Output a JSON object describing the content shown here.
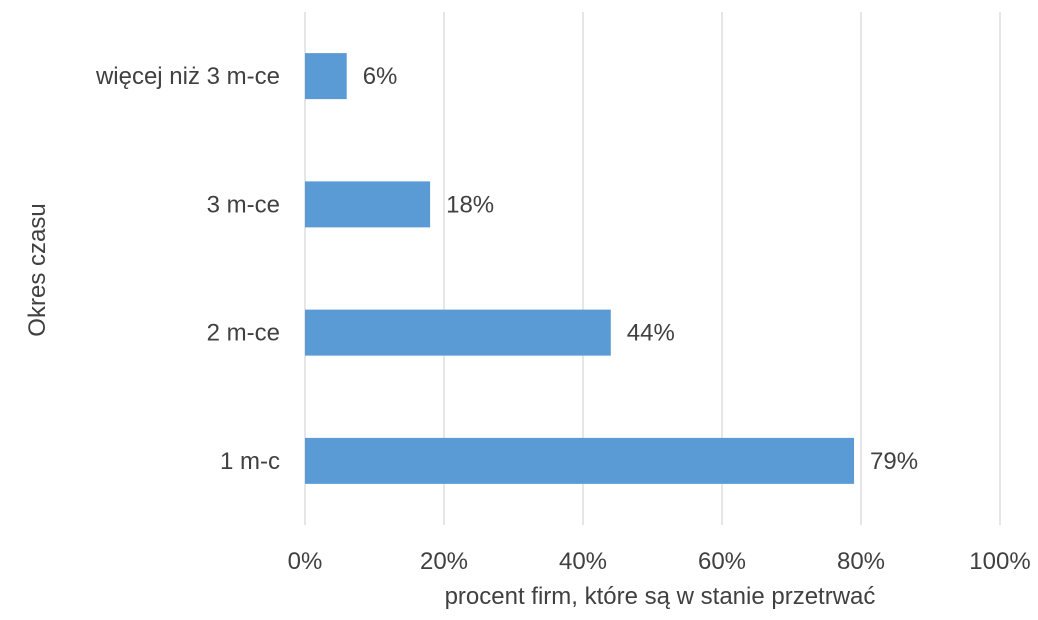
{
  "chart_data": {
    "type": "bar",
    "orientation": "horizontal",
    "categories": [
      "więcej niż 3 m-ce",
      "3 m-ce",
      "2 m-ce",
      "1 m-c"
    ],
    "values": [
      6,
      18,
      44,
      79
    ],
    "data_labels": [
      "6%",
      "18%",
      "44%",
      "79%"
    ],
    "xlabel": "procent firm, które są w stanie przetrwać",
    "ylabel": "Okres czasu",
    "xlim": [
      0,
      100
    ],
    "x_ticks": [
      0,
      20,
      40,
      60,
      80,
      100
    ],
    "x_tick_labels": [
      "0%",
      "20%",
      "40%",
      "60%",
      "80%",
      "100%"
    ],
    "grid": "vertical",
    "legend": "none",
    "bar_color": "#5b9bd5",
    "grid_color": "#d9d9d9",
    "text_color": "#404040"
  }
}
